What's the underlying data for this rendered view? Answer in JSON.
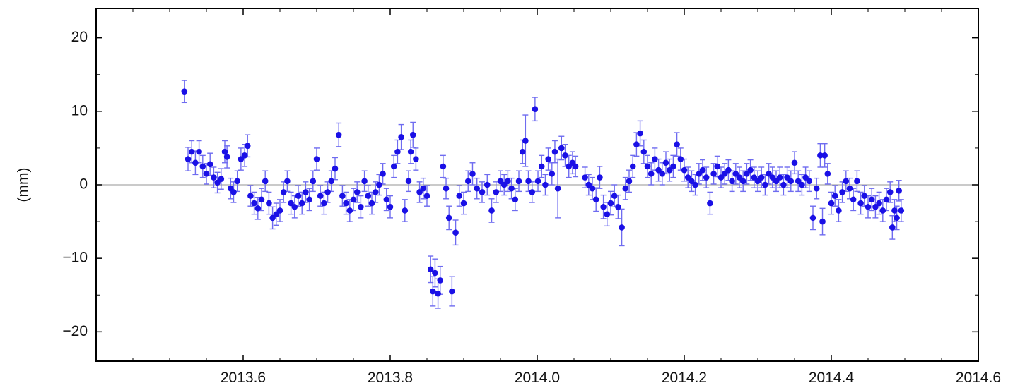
{
  "chart_data": {
    "type": "scatter",
    "title": "",
    "xlabel": "",
    "ylabel": "(mm)",
    "xlim": [
      2013.4,
      2014.6
    ],
    "ylim": [
      -24,
      24
    ],
    "xticks": [
      {
        "value": 2013.6,
        "label": "2013.6"
      },
      {
        "value": 2013.8,
        "label": "2013.8"
      },
      {
        "value": 2014.0,
        "label": "2014.0"
      },
      {
        "value": 2014.2,
        "label": "2014.2"
      },
      {
        "value": 2014.4,
        "label": "2014.4"
      },
      {
        "value": 2014.6,
        "label": "2014.6"
      }
    ],
    "yticks": [
      {
        "value": 20,
        "label": "20"
      },
      {
        "value": 10,
        "label": "10"
      },
      {
        "value": 0,
        "label": "0"
      },
      {
        "value": -10,
        "label": "−10"
      },
      {
        "value": -20,
        "label": "−20"
      }
    ],
    "zero_line": true,
    "grid": false,
    "colors": {
      "points": "#1a10e6",
      "errorbars": "#6f6cf0",
      "zero_line": "#aaaaaa",
      "frame": "#000000"
    },
    "series": [
      {
        "points": [
          [
            2013.52,
            12.7,
            1.5
          ],
          [
            2013.525,
            3.5,
            1.6
          ],
          [
            2013.53,
            4.5,
            1.5
          ],
          [
            2013.535,
            3.0,
            1.6
          ],
          [
            2013.54,
            4.5,
            1.5
          ],
          [
            2013.545,
            2.5,
            1.5
          ],
          [
            2013.55,
            1.5,
            1.4
          ],
          [
            2013.555,
            2.8,
            1.5
          ],
          [
            2013.56,
            1.0,
            1.4
          ],
          [
            2013.565,
            0.3,
            1.4
          ],
          [
            2013.57,
            0.8,
            1.4
          ],
          [
            2013.575,
            4.5,
            1.5
          ],
          [
            2013.578,
            3.8,
            1.5
          ],
          [
            2013.583,
            -0.5,
            1.4
          ],
          [
            2013.587,
            -1.0,
            1.4
          ],
          [
            2013.592,
            0.5,
            1.4
          ],
          [
            2013.597,
            3.5,
            1.5
          ],
          [
            2013.602,
            4.0,
            1.5
          ],
          [
            2013.606,
            5.3,
            1.5
          ],
          [
            2013.61,
            -1.5,
            1.4
          ],
          [
            2013.615,
            -2.5,
            1.5
          ],
          [
            2013.62,
            -3.2,
            1.5
          ],
          [
            2013.625,
            -2.0,
            1.5
          ],
          [
            2013.63,
            0.5,
            1.4
          ],
          [
            2013.635,
            -2.5,
            1.5
          ],
          [
            2013.64,
            -4.5,
            1.5
          ],
          [
            2013.645,
            -4.0,
            1.5
          ],
          [
            2013.65,
            -3.5,
            1.5
          ],
          [
            2013.655,
            -1.0,
            1.4
          ],
          [
            2013.66,
            0.5,
            1.4
          ],
          [
            2013.665,
            -2.5,
            1.5
          ],
          [
            2013.67,
            -3.0,
            1.5
          ],
          [
            2013.675,
            -1.5,
            1.4
          ],
          [
            2013.68,
            -2.5,
            1.5
          ],
          [
            2013.685,
            -1.0,
            1.4
          ],
          [
            2013.69,
            -2.0,
            1.5
          ],
          [
            2013.695,
            0.5,
            1.4
          ],
          [
            2013.7,
            3.5,
            1.5
          ],
          [
            2013.705,
            -1.5,
            1.4
          ],
          [
            2013.71,
            -2.5,
            1.5
          ],
          [
            2013.715,
            -1.0,
            1.4
          ],
          [
            2013.72,
            0.5,
            1.4
          ],
          [
            2013.725,
            2.2,
            1.5
          ],
          [
            2013.73,
            6.8,
            1.6
          ],
          [
            2013.735,
            -1.5,
            1.4
          ],
          [
            2013.74,
            -2.5,
            1.5
          ],
          [
            2013.745,
            -3.5,
            1.5
          ],
          [
            2013.75,
            -2.0,
            1.5
          ],
          [
            2013.755,
            -1.0,
            1.4
          ],
          [
            2013.76,
            -3.0,
            1.5
          ],
          [
            2013.765,
            0.5,
            1.4
          ],
          [
            2013.77,
            -1.5,
            1.4
          ],
          [
            2013.775,
            -2.5,
            1.5
          ],
          [
            2013.78,
            -1.0,
            1.4
          ],
          [
            2013.785,
            0.0,
            1.4
          ],
          [
            2013.79,
            1.5,
            1.4
          ],
          [
            2013.795,
            -2.0,
            1.5
          ],
          [
            2013.8,
            -3.0,
            1.5
          ],
          [
            2013.805,
            2.5,
            1.5
          ],
          [
            2013.81,
            4.5,
            1.6
          ],
          [
            2013.815,
            6.5,
            1.7
          ],
          [
            2013.82,
            -3.5,
            1.5
          ],
          [
            2013.825,
            0.5,
            1.4
          ],
          [
            2013.828,
            4.5,
            1.6
          ],
          [
            2013.831,
            6.8,
            1.7
          ],
          [
            2013.835,
            3.5,
            1.5
          ],
          [
            2013.84,
            -1.0,
            1.4
          ],
          [
            2013.845,
            -0.5,
            1.4
          ],
          [
            2013.85,
            -1.5,
            1.4
          ],
          [
            2013.855,
            -11.5,
            1.8
          ],
          [
            2013.858,
            -14.5,
            2.0
          ],
          [
            2013.861,
            -12.0,
            1.9
          ],
          [
            2013.865,
            -14.8,
            2.0
          ],
          [
            2013.868,
            -13.0,
            1.9
          ],
          [
            2013.872,
            2.5,
            1.5
          ],
          [
            2013.876,
            -0.5,
            1.4
          ],
          [
            2013.88,
            -4.5,
            1.6
          ],
          [
            2013.884,
            -14.5,
            2.0
          ],
          [
            2013.889,
            -6.5,
            1.7
          ],
          [
            2013.894,
            -1.5,
            1.4
          ],
          [
            2013.9,
            -2.5,
            1.5
          ],
          [
            2013.906,
            0.5,
            1.4
          ],
          [
            2013.912,
            1.5,
            1.5
          ],
          [
            2013.918,
            -0.5,
            1.4
          ],
          [
            2013.925,
            -1.0,
            1.4
          ],
          [
            2013.932,
            0.0,
            1.4
          ],
          [
            2013.938,
            -3.5,
            1.6
          ],
          [
            2013.944,
            -1.0,
            1.4
          ],
          [
            2013.95,
            0.5,
            1.4
          ],
          [
            2013.955,
            0.0,
            1.4
          ],
          [
            2013.96,
            0.5,
            1.4
          ],
          [
            2013.965,
            -0.5,
            1.4
          ],
          [
            2013.97,
            -2.0,
            1.5
          ],
          [
            2013.975,
            0.5,
            1.4
          ],
          [
            2013.98,
            4.5,
            1.6
          ],
          [
            2013.984,
            6.0,
            3.5
          ],
          [
            2013.988,
            0.5,
            1.4
          ],
          [
            2013.993,
            -1.0,
            1.4
          ],
          [
            2013.997,
            10.3,
            1.6
          ],
          [
            2014.001,
            0.5,
            1.4
          ],
          [
            2014.006,
            2.5,
            1.5
          ],
          [
            2014.011,
            0.0,
            1.4
          ],
          [
            2014.015,
            3.5,
            1.5
          ],
          [
            2014.02,
            1.5,
            1.5
          ],
          [
            2014.024,
            4.5,
            1.5
          ],
          [
            2014.028,
            -0.5,
            4.0
          ],
          [
            2014.033,
            5.0,
            1.6
          ],
          [
            2014.038,
            4.0,
            1.5
          ],
          [
            2014.043,
            2.5,
            1.5
          ],
          [
            2014.048,
            3.0,
            1.5
          ],
          [
            2014.052,
            2.5,
            1.4
          ],
          [
            2014.065,
            1.0,
            1.4
          ],
          [
            2014.07,
            0.0,
            1.4
          ],
          [
            2014.075,
            -0.5,
            1.5
          ],
          [
            2014.08,
            -2.0,
            1.6
          ],
          [
            2014.085,
            1.0,
            1.5
          ],
          [
            2014.09,
            -3.0,
            1.6
          ],
          [
            2014.095,
            -4.0,
            1.6
          ],
          [
            2014.1,
            -2.5,
            1.6
          ],
          [
            2014.105,
            -1.5,
            1.5
          ],
          [
            2014.11,
            -3.0,
            1.6
          ],
          [
            2014.115,
            -5.8,
            2.5
          ],
          [
            2014.12,
            -0.5,
            1.5
          ],
          [
            2014.125,
            0.5,
            1.5
          ],
          [
            2014.13,
            2.5,
            1.5
          ],
          [
            2014.135,
            5.5,
            1.6
          ],
          [
            2014.14,
            7.0,
            1.7
          ],
          [
            2014.145,
            4.5,
            1.6
          ],
          [
            2014.15,
            2.5,
            1.5
          ],
          [
            2014.155,
            1.5,
            1.5
          ],
          [
            2014.16,
            3.5,
            1.5
          ],
          [
            2014.165,
            2.0,
            1.5
          ],
          [
            2014.17,
            1.5,
            1.5
          ],
          [
            2014.175,
            3.0,
            1.5
          ],
          [
            2014.18,
            2.0,
            1.5
          ],
          [
            2014.185,
            2.5,
            1.5
          ],
          [
            2014.19,
            5.5,
            1.6
          ],
          [
            2014.195,
            3.5,
            1.5
          ],
          [
            2014.2,
            2.0,
            1.5
          ],
          [
            2014.205,
            1.0,
            1.4
          ],
          [
            2014.21,
            0.5,
            1.4
          ],
          [
            2014.215,
            0.0,
            1.4
          ],
          [
            2014.22,
            1.5,
            1.4
          ],
          [
            2014.225,
            2.0,
            1.4
          ],
          [
            2014.23,
            1.0,
            1.4
          ],
          [
            2014.235,
            -2.5,
            1.5
          ],
          [
            2014.24,
            1.5,
            1.4
          ],
          [
            2014.245,
            2.5,
            1.4
          ],
          [
            2014.25,
            1.0,
            1.4
          ],
          [
            2014.255,
            1.5,
            1.4
          ],
          [
            2014.26,
            2.0,
            1.4
          ],
          [
            2014.265,
            0.5,
            1.4
          ],
          [
            2014.27,
            1.5,
            1.4
          ],
          [
            2014.275,
            1.0,
            1.4
          ],
          [
            2014.28,
            0.5,
            1.4
          ],
          [
            2014.285,
            1.5,
            1.4
          ],
          [
            2014.29,
            2.0,
            1.4
          ],
          [
            2014.295,
            1.0,
            1.4
          ],
          [
            2014.3,
            0.5,
            1.4
          ],
          [
            2014.305,
            1.0,
            1.4
          ],
          [
            2014.31,
            0.0,
            1.4
          ],
          [
            2014.315,
            1.5,
            1.4
          ],
          [
            2014.32,
            1.0,
            1.4
          ],
          [
            2014.325,
            0.5,
            1.4
          ],
          [
            2014.33,
            1.0,
            1.4
          ],
          [
            2014.335,
            0.0,
            1.4
          ],
          [
            2014.34,
            1.0,
            1.4
          ],
          [
            2014.345,
            0.5,
            1.4
          ],
          [
            2014.35,
            3.0,
            1.5
          ],
          [
            2014.355,
            0.5,
            1.4
          ],
          [
            2014.36,
            0.0,
            1.4
          ],
          [
            2014.365,
            1.0,
            1.4
          ],
          [
            2014.37,
            0.5,
            1.4
          ],
          [
            2014.375,
            -4.5,
            1.6
          ],
          [
            2014.38,
            -0.5,
            1.4
          ],
          [
            2014.385,
            4.0,
            1.6
          ],
          [
            2014.388,
            -5.0,
            1.8
          ],
          [
            2014.391,
            4.0,
            1.6
          ],
          [
            2014.395,
            1.5,
            1.4
          ],
          [
            2014.4,
            -2.5,
            1.5
          ],
          [
            2014.405,
            -1.5,
            1.4
          ],
          [
            2014.41,
            -3.5,
            1.5
          ],
          [
            2014.415,
            -1.0,
            1.4
          ],
          [
            2014.42,
            0.5,
            1.4
          ],
          [
            2014.425,
            -0.5,
            1.4
          ],
          [
            2014.43,
            -2.0,
            1.5
          ],
          [
            2014.435,
            0.5,
            1.4
          ],
          [
            2014.44,
            -2.5,
            1.5
          ],
          [
            2014.445,
            -1.5,
            1.4
          ],
          [
            2014.45,
            -3.0,
            1.5
          ],
          [
            2014.455,
            -2.0,
            1.5
          ],
          [
            2014.46,
            -3.0,
            1.5
          ],
          [
            2014.465,
            -2.5,
            1.5
          ],
          [
            2014.47,
            -3.5,
            1.5
          ],
          [
            2014.475,
            -2.0,
            1.5
          ],
          [
            2014.48,
            -1.0,
            1.4
          ],
          [
            2014.483,
            -5.8,
            1.6
          ],
          [
            2014.486,
            -3.5,
            1.5
          ],
          [
            2014.489,
            -4.5,
            1.6
          ],
          [
            2014.492,
            -0.8,
            1.4
          ],
          [
            2014.495,
            -3.5,
            1.5
          ]
        ]
      }
    ]
  }
}
